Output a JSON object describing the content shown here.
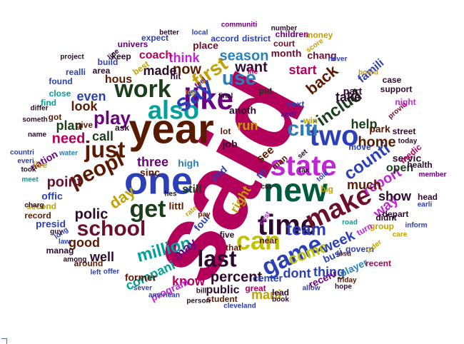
{
  "wordcloud": {
    "words": [
      {
        "text": "said",
        "color": "#b3005a"
      },
      {
        "text": "year",
        "color": "#5a1a00"
      },
      {
        "text": "one",
        "color": "#2b3fb8"
      },
      {
        "text": "new",
        "color": "#005a3c"
      },
      {
        "text": "state",
        "color": "#c026d3"
      },
      {
        "text": "time",
        "color": "#2d0a2d"
      },
      {
        "text": "like",
        "color": "#6b0080"
      },
      {
        "text": "two",
        "color": "#2b3fb8"
      },
      {
        "text": "make",
        "color": "#6b0f2b"
      },
      {
        "text": "game",
        "color": "#2b3fb8"
      },
      {
        "text": "can",
        "color": "#c2c200"
      },
      {
        "text": "just",
        "color": "#5a1a00"
      },
      {
        "text": "get",
        "color": "#1a3d1a"
      },
      {
        "text": "work",
        "color": "#1a3d1a"
      },
      {
        "text": "also",
        "color": "#00a19a"
      },
      {
        "text": "first",
        "color": "#c2a000"
      },
      {
        "text": "say",
        "color": "#2b3fb8"
      },
      {
        "text": "peopl",
        "color": "#5a1a00"
      },
      {
        "text": "school",
        "color": "#6b0f2b"
      },
      {
        "text": "last",
        "color": "#2d0a2d"
      },
      {
        "text": "citi",
        "color": "#2b7fb8"
      },
      {
        "text": "use",
        "color": "#2b7fb8"
      },
      {
        "text": "play",
        "color": "#6b0080"
      },
      {
        "text": "counti",
        "color": "#2b3fb8"
      },
      {
        "text": "includ",
        "color": "#1a3d1a"
      },
      {
        "text": "team",
        "color": "#2b3fb8"
      },
      {
        "text": "season",
        "color": "#2b7fb8"
      },
      {
        "text": "back",
        "color": "#5a1a00"
      },
      {
        "text": "million",
        "color": "#00a19a"
      },
      {
        "text": "percent",
        "color": "#2d0a2d"
      },
      {
        "text": "come",
        "color": "#c2c200"
      },
      {
        "text": "week",
        "color": "#2b3fb8"
      },
      {
        "text": "report",
        "color": "#c026d3"
      },
      {
        "text": "day",
        "color": "#c2a000"
      },
      {
        "text": "need",
        "color": "#b3005a"
      },
      {
        "text": "point",
        "color": "#6b0f2b"
      },
      {
        "text": "polic",
        "color": "#2d0a2d"
      },
      {
        "text": "home",
        "color": "#5a1a00"
      },
      {
        "text": "way",
        "color": "#c026d3"
      },
      {
        "text": "now",
        "color": "#5a1a00"
      },
      {
        "text": "want",
        "color": "#2d0a2d"
      },
      {
        "text": "made",
        "color": "#2d0a2d"
      },
      {
        "text": "think",
        "color": "#c026d3"
      },
      {
        "text": "take",
        "color": "#2d0a2d"
      },
      {
        "text": "help",
        "color": "#1a3d1a"
      },
      {
        "text": "even",
        "color": "#2b3fb8"
      },
      {
        "text": "call",
        "color": "#1a3d1a"
      },
      {
        "text": "look",
        "color": "#5a1a00"
      },
      {
        "text": "plan",
        "color": "#1a3d1a"
      },
      {
        "text": "run",
        "color": "#c2a000"
      },
      {
        "text": "three",
        "color": "#6b0080"
      },
      {
        "text": "much",
        "color": "#5a1a00"
      },
      {
        "text": "show",
        "color": "#2d0a2d"
      },
      {
        "text": "open",
        "color": "#1a3d1a"
      },
      {
        "text": "start",
        "color": "#b3005a"
      },
      {
        "text": "good",
        "color": "#5a1a00"
      },
      {
        "text": "well",
        "color": "#2d0a2d"
      },
      {
        "text": "compani",
        "color": "#00a19a"
      },
      {
        "text": "know",
        "color": "#b3005a"
      },
      {
        "text": "dont",
        "color": "#2b3fb8"
      },
      {
        "text": "thing",
        "color": "#2b3fb8"
      },
      {
        "text": "mani",
        "color": "#c2a000"
      },
      {
        "text": "public",
        "color": "#2d0a2d"
      },
      {
        "text": "still",
        "color": "#1a3d1a"
      },
      {
        "text": "right",
        "color": "#c2a000"
      },
      {
        "text": "may",
        "color": "#6b0080"
      },
      {
        "text": "four",
        "color": "#2b3fb8"
      },
      {
        "text": "see",
        "color": "#5a1a00"
      },
      {
        "text": "hous",
        "color": "#5a1a00"
      },
      {
        "text": "coach",
        "color": "#b3005a"
      },
      {
        "text": "place",
        "color": "#6b0f2b"
      },
      {
        "text": "month",
        "color": "#6b0f2b"
      },
      {
        "text": "chang",
        "color": "#6b0f2b"
      },
      {
        "text": "famili",
        "color": "#2b3fb8"
      },
      {
        "text": "part",
        "color": "#2d0a2d"
      },
      {
        "text": "servic",
        "color": "#2d0a2d"
      },
      {
        "text": "park",
        "color": "#5a1a00"
      },
      {
        "text": "offic",
        "color": "#2b3fb8"
      },
      {
        "text": "nation",
        "color": "#6b0080"
      },
      {
        "text": "high",
        "color": "#2b7fb8"
      },
      {
        "text": "sinc",
        "color": "#5a1a00"
      },
      {
        "text": "littl",
        "color": "#5a1a00"
      },
      {
        "text": "job",
        "color": "#2d0a2d"
      },
      {
        "text": "lot",
        "color": "#5a1a00"
      },
      {
        "text": "anoth",
        "color": "#2d0a2d"
      },
      {
        "text": "end",
        "color": "#2b3fb8"
      },
      {
        "text": "tri",
        "color": "#2b3fb8"
      },
      {
        "text": "program",
        "color": "#c026d3"
      },
      {
        "text": "former",
        "color": "#5a1a00"
      },
      {
        "text": "center",
        "color": "#2b3fb8"
      },
      {
        "text": "lead",
        "color": "#2d0a2d"
      },
      {
        "text": "receiv",
        "color": "#6b0080"
      },
      {
        "text": "player",
        "color": "#2b7fb8"
      },
      {
        "text": "busi",
        "color": "#2b3fb8"
      },
      {
        "text": "near",
        "color": "#5a1a00"
      },
      {
        "text": "five",
        "color": "#2d0a2d"
      },
      {
        "text": "that",
        "color": "#5a1a00"
      },
      {
        "text": "presid",
        "color": "#2b3fb8"
      },
      {
        "text": "record",
        "color": "#5a1a00"
      },
      {
        "text": "second",
        "color": "#c2a000"
      },
      {
        "text": "live",
        "color": "#c2a000"
      },
      {
        "text": "give",
        "color": "#5a1a00"
      },
      {
        "text": "ask",
        "color": "#2d0a2d"
      },
      {
        "text": "got",
        "color": "#5a1a00"
      },
      {
        "text": "find",
        "color": "#00a19a"
      },
      {
        "text": "close",
        "color": "#00a19a"
      },
      {
        "text": "found",
        "color": "#2b3fb8"
      },
      {
        "text": "realli",
        "color": "#2b3fb8"
      },
      {
        "text": "build",
        "color": "#2b3fb8"
      },
      {
        "text": "keep",
        "color": "#2d0a2d"
      },
      {
        "text": "univers",
        "color": "#6b0080"
      },
      {
        "text": "line",
        "color": "#2d0a2d"
      },
      {
        "text": "best",
        "color": "#c2a000"
      },
      {
        "text": "area",
        "color": "#2d0a2d"
      },
      {
        "text": "expect",
        "color": "#2b3fb8"
      },
      {
        "text": "hit",
        "color": "#2d0a2d"
      },
      {
        "text": "top",
        "color": "#c2a000"
      },
      {
        "text": "accord",
        "color": "#2b3fb8"
      },
      {
        "text": "district",
        "color": "#2b3fb8"
      },
      {
        "text": "children",
        "color": "#6b0080"
      },
      {
        "text": "court",
        "color": "#6b0f2b"
      },
      {
        "text": "score",
        "color": "#c2a000"
      },
      {
        "text": "money",
        "color": "#c2a000"
      },
      {
        "text": "number",
        "color": "#2d0a2d"
      },
      {
        "text": "communiti",
        "color": "#6b0080"
      },
      {
        "text": "better",
        "color": "#2d0a2d"
      },
      {
        "text": "local",
        "color": "#2b3fb8"
      },
      {
        "text": "project",
        "color": "#2d0a2d"
      },
      {
        "text": "never",
        "color": "#2b3fb8"
      },
      {
        "text": "board",
        "color": "#c2a000"
      },
      {
        "text": "life",
        "color": "#b3005a"
      },
      {
        "text": "case",
        "color": "#2d0a2d"
      },
      {
        "text": "support",
        "color": "#2d0a2d"
      },
      {
        "text": "provid",
        "color": "#6b0f2b"
      },
      {
        "text": "night",
        "color": "#c026d3"
      },
      {
        "text": "put",
        "color": "#1a3d1a"
      },
      {
        "text": "final",
        "color": "#2d0a2d"
      },
      {
        "text": "next",
        "color": "#2b3fb8"
      },
      {
        "text": "april",
        "color": "#6b0080"
      },
      {
        "text": "win",
        "color": "#c2a000"
      },
      {
        "text": "move",
        "color": "#2b3fb8"
      },
      {
        "text": "street",
        "color": "#2d0a2d"
      },
      {
        "text": "today",
        "color": "#2d0a2d"
      },
      {
        "text": "medic",
        "color": "#b3005a"
      },
      {
        "text": "health",
        "color": "#2d0a2d"
      },
      {
        "text": "member",
        "color": "#6b0080"
      },
      {
        "text": "head",
        "color": "#2d0a2d"
      },
      {
        "text": "earli",
        "color": "#2b3fb8"
      },
      {
        "text": "inform",
        "color": "#2b3fb8"
      },
      {
        "text": "depart",
        "color": "#2d0a2d"
      },
      {
        "text": "care",
        "color": "#c2a000"
      },
      {
        "text": "group",
        "color": "#c2a000"
      },
      {
        "text": "govern",
        "color": "#2b3fb8"
      },
      {
        "text": "issu",
        "color": "#5a1a00"
      },
      {
        "text": "feder",
        "color": "#c2a000"
      },
      {
        "text": "recent",
        "color": "#b3005a"
      },
      {
        "text": "hope",
        "color": "#2d0a2d"
      },
      {
        "text": "friday",
        "color": "#5a1a00"
      },
      {
        "text": "allow",
        "color": "#2b3fb8"
      },
      {
        "text": "book",
        "color": "#2d0a2d"
      },
      {
        "text": "great",
        "color": "#b3005a"
      },
      {
        "text": "student",
        "color": "#5a1a00"
      },
      {
        "text": "cleveland",
        "color": "#2b3fb8"
      },
      {
        "text": "person",
        "color": "#2d0a2d"
      },
      {
        "text": "bill",
        "color": "#2d0a2d"
      },
      {
        "text": "american",
        "color": "#2b3fb8"
      },
      {
        "text": "sever",
        "color": "#2b3fb8"
      },
      {
        "text": "offer",
        "color": "#2b3fb8"
      },
      {
        "text": "left",
        "color": "#2b3fb8"
      },
      {
        "text": "around",
        "color": "#5a1a00"
      },
      {
        "text": "among",
        "color": "#2d0a2d"
      },
      {
        "text": "manag",
        "color": "#2d0a2d"
      },
      {
        "text": "law",
        "color": "#2b3fb8"
      },
      {
        "text": "long",
        "color": "#2b3fb8"
      },
      {
        "text": "guy",
        "color": "#2d0a2d"
      },
      {
        "text": "charg",
        "color": "#2d0a2d"
      },
      {
        "text": "meet",
        "color": "#00a19a"
      },
      {
        "text": "took",
        "color": "#2d0a2d"
      },
      {
        "text": "everi",
        "color": "#2b3fb8"
      },
      {
        "text": "countri",
        "color": "#2b3fb8"
      },
      {
        "text": "name",
        "color": "#2d0a2d"
      },
      {
        "text": "someth",
        "color": "#2d0a2d"
      },
      {
        "text": "differ",
        "color": "#2d0a2d"
      },
      {
        "text": "water",
        "color": "#2b7fb8"
      },
      {
        "text": "hes",
        "color": "#2d0a2d"
      },
      {
        "text": "man",
        "color": "#5a1a00"
      },
      {
        "text": "set",
        "color": "#2d0a2d"
      },
      {
        "text": "cut",
        "color": "#2d0a2d"
      },
      {
        "text": "tax",
        "color": "#2d0a2d"
      },
      {
        "text": "told",
        "color": "#2b3fb8"
      },
      {
        "text": "big",
        "color": "#c2a000"
      },
      {
        "text": "road",
        "color": "#00a19a"
      },
      {
        "text": "turn",
        "color": "#c026d3"
      },
      {
        "text": "didnt",
        "color": "#2d0a2d"
      },
      {
        "text": "rate",
        "color": "#c2a000"
      },
      {
        "text": "pay",
        "color": "#5a1a00"
      },
      {
        "text": "cost",
        "color": "#c026d3"
      },
      {
        "text": "feel",
        "color": "#6b0080"
      }
    ]
  }
}
